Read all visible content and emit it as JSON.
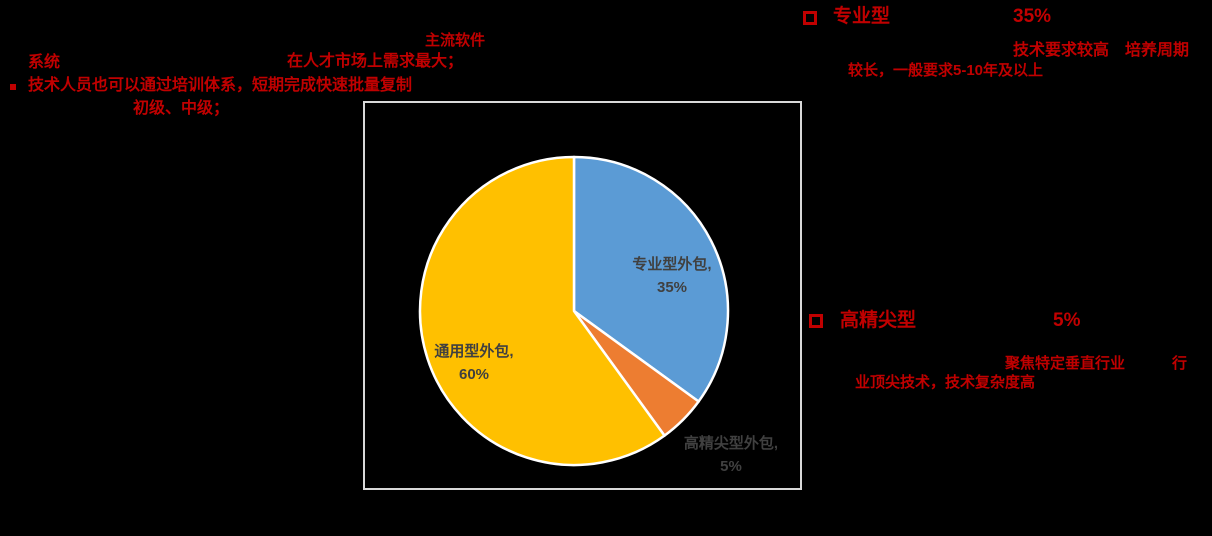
{
  "colors": {
    "background": "#000000",
    "accent_red": "#C00000",
    "pie_label_gray": "#404040",
    "chart_box_border": "#D9D9D9"
  },
  "annotations": {
    "top_left": {
      "label_mainstream": "主流软件",
      "label_system": "系统",
      "label_market_demand": "在人才市场上需求最大；",
      "bullet_text": "技术人员也可以通过培训体系，短期完成快速批量复制",
      "label_levels": "初级、中级；"
    },
    "professional": {
      "title": "专业型",
      "percent": "35%",
      "desc_line1": "技术要求较高　培养周期",
      "desc_line2": "较长，一般要求5-10年及以上"
    },
    "highend": {
      "title": "高精尖型",
      "percent": "5%",
      "desc_line1": "聚焦特定垂直行业",
      "desc_line1_tail": "行",
      "desc_line2": "业顶尖技术，技术复杂度高"
    }
  },
  "chart_data": {
    "type": "pie",
    "title": "",
    "start_angle_deg": 0,
    "direction": "clockwise",
    "slice_border_color": "#FFFFFF",
    "slices": [
      {
        "id": "professional",
        "label": "专业型外包",
        "value": 35,
        "color": "#5B9BD5",
        "label_line1": "专业型外包,",
        "label_line2": "35%",
        "label_placement": "inside"
      },
      {
        "id": "highend",
        "label": "高精尖型外包",
        "value": 5,
        "color": "#ED7D31",
        "label_line1": "高精尖型外包,",
        "label_line2": "5%",
        "label_placement": "outside"
      },
      {
        "id": "general",
        "label": "通用型外包",
        "value": 60,
        "color": "#FFC000",
        "label_line1": "通用型外包,",
        "label_line2": "60%",
        "label_placement": "inside"
      }
    ]
  }
}
